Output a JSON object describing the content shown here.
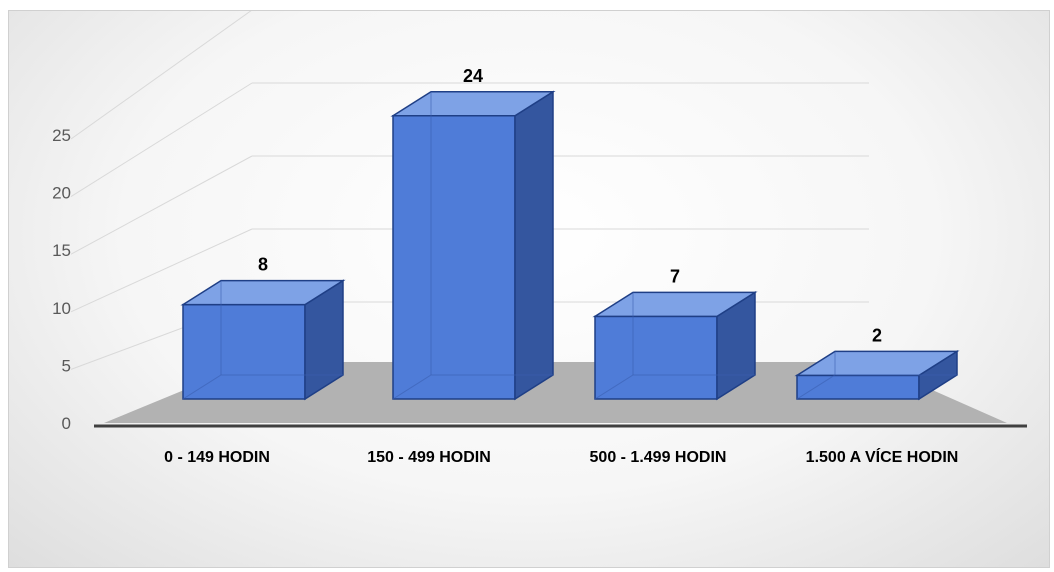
{
  "chart_data": {
    "type": "bar",
    "style": "3d-column",
    "categories": [
      "0 - 149 HODIN",
      "150 - 499 HODIN",
      "500 - 1.499 HODIN",
      "1.500 A VÍCE HODIN"
    ],
    "series": [
      {
        "values": [
          8,
          24,
          7,
          2
        ]
      }
    ],
    "data_labels": [
      "8",
      "24",
      "7",
      "2"
    ],
    "y_ticks": [
      "0",
      "5",
      "10",
      "15",
      "20",
      "25"
    ],
    "ylim": [
      0,
      25
    ],
    "grid": true,
    "legend": "none",
    "colors": {
      "front": "#4f7cd8",
      "side": "#34569f",
      "top": "#7ea2e6",
      "edge": "#1f3f86",
      "floor": "#b2b2b2",
      "grid": "#d9d9d9"
    }
  }
}
